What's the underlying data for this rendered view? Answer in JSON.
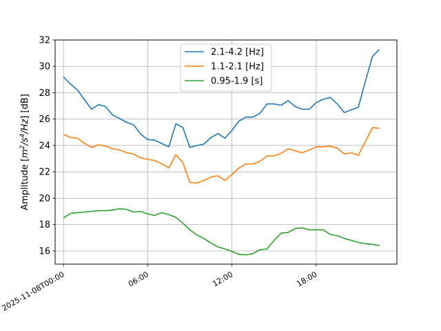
{
  "chart_data": {
    "type": "line",
    "title": "",
    "xlabel": "",
    "ylabel": "Amplitude [m²/s⁴/Hz] [dB]",
    "ylabel_parts": {
      "prefix": "Amplitude [",
      "m": "m",
      "sup2": "2",
      "s": "/s",
      "sup4": "4",
      "hz": "/Hz",
      "suffix": "] [dB]"
    },
    "x_start": "2025-11-08T00:00",
    "x_step_minutes": 30,
    "xlim_hours": [
      -0.6,
      23.75
    ],
    "ylim": [
      15,
      32
    ],
    "grid": true,
    "legend_position": "top-center",
    "x_ticks": [
      {
        "hour": 0,
        "label": "2025-11-08T00:00"
      },
      {
        "hour": 6,
        "label": "06:00"
      },
      {
        "hour": 12,
        "label": "12:00"
      },
      {
        "hour": 18,
        "label": "18:00"
      }
    ],
    "y_ticks": [
      16,
      18,
      20,
      22,
      24,
      26,
      28,
      30,
      32
    ],
    "series": [
      {
        "name": "2.1-4.2 [Hz]",
        "color": "#1f77b4",
        "values": [
          29.2,
          28.65,
          28.2,
          27.45,
          26.75,
          27.1,
          26.95,
          26.3,
          26.05,
          25.75,
          25.55,
          24.85,
          24.45,
          24.4,
          24.15,
          23.9,
          25.65,
          25.35,
          23.85,
          24.0,
          24.1,
          24.6,
          24.9,
          24.55,
          25.15,
          25.85,
          26.15,
          26.15,
          26.45,
          27.15,
          27.15,
          27.05,
          27.4,
          26.95,
          26.75,
          26.75,
          27.25,
          27.5,
          27.65,
          27.15,
          26.5,
          26.7,
          26.9,
          28.85,
          30.75,
          31.3
        ]
      },
      {
        "name": "1.1-2.1 [Hz]",
        "color": "#ff7f0e",
        "values": [
          24.85,
          24.6,
          24.55,
          24.15,
          23.85,
          24.05,
          23.95,
          23.75,
          23.65,
          23.45,
          23.35,
          23.05,
          22.95,
          22.85,
          22.6,
          22.3,
          23.3,
          22.7,
          21.2,
          21.15,
          21.35,
          21.6,
          21.7,
          21.35,
          21.8,
          22.3,
          22.6,
          22.6,
          22.8,
          23.2,
          23.2,
          23.4,
          23.75,
          23.6,
          23.45,
          23.65,
          23.9,
          23.9,
          23.95,
          23.8,
          23.35,
          23.45,
          23.25,
          24.3,
          25.35,
          25.3
        ]
      },
      {
        "name": "0.95-1.9 [s]",
        "color": "#2ca02c",
        "values": [
          18.5,
          18.85,
          18.9,
          18.95,
          19.0,
          19.05,
          19.05,
          19.1,
          19.2,
          19.15,
          18.95,
          19.0,
          18.8,
          18.7,
          18.9,
          18.75,
          18.55,
          18.1,
          17.6,
          17.2,
          16.95,
          16.6,
          16.3,
          16.15,
          15.95,
          15.75,
          15.7,
          15.8,
          16.1,
          16.15,
          16.8,
          17.35,
          17.4,
          17.7,
          17.75,
          17.6,
          17.6,
          17.6,
          17.25,
          17.15,
          16.95,
          16.8,
          16.65,
          16.55,
          16.5,
          16.4
        ]
      }
    ]
  }
}
